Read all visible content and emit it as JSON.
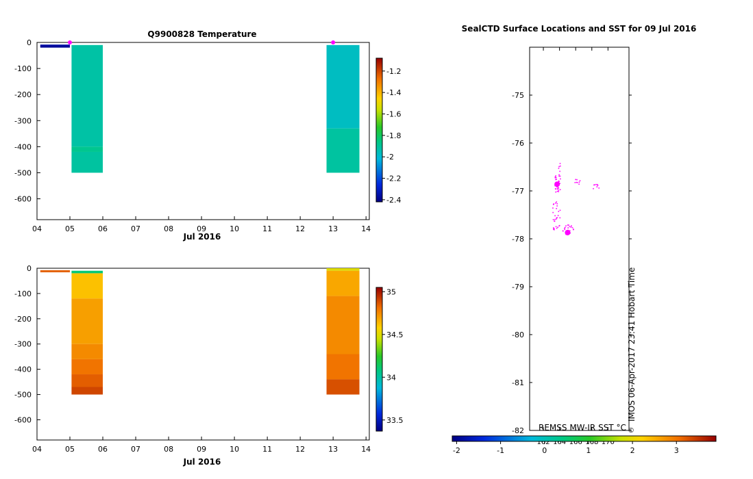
{
  "chart_data": [
    {
      "type": "heatmap",
      "title": "Q9900828  Temperature",
      "xlabel": "Jul 2016",
      "x_ticks": [
        "04",
        "05",
        "06",
        "07",
        "08",
        "09",
        "10",
        "11",
        "12",
        "13",
        "14"
      ],
      "xlim": [
        4,
        14.1
      ],
      "ylim": [
        -680,
        0
      ],
      "y_ticks": [
        0,
        -100,
        -200,
        -300,
        -400,
        -500,
        -600
      ],
      "colorbar": {
        "range": [
          -2.42,
          -1.08
        ],
        "ticks": [
          -1.2,
          -1.4,
          -1.6,
          -1.8,
          -2,
          -2.2,
          -2.4
        ]
      },
      "surface_track": [
        {
          "x0": 4.1,
          "x1": 5.0,
          "depth": -12,
          "value": -2.35
        },
        {
          "x0": 4.1,
          "x1": 5.0,
          "depth": -16,
          "value": -2.38
        }
      ],
      "profiles": [
        {
          "x0": 5.05,
          "x1": 6.0,
          "cells": [
            {
              "top": -10,
              "bottom": -400,
              "value": -1.92
            },
            {
              "top": -400,
              "bottom": -420,
              "value": -1.88
            },
            {
              "top": -420,
              "bottom": -500,
              "value": -1.91
            }
          ]
        },
        {
          "x0": 12.8,
          "x1": 13.8,
          "cells": [
            {
              "top": -10,
              "bottom": -330,
              "value": -1.97
            },
            {
              "top": -330,
              "bottom": -500,
              "value": -1.91
            }
          ]
        }
      ],
      "markers": [
        {
          "x": 5.0,
          "y": 0
        },
        {
          "x": 13.0,
          "y": 0
        }
      ]
    },
    {
      "type": "heatmap",
      "title": "",
      "xlabel": "Jul 2016",
      "x_ticks": [
        "04",
        "05",
        "06",
        "07",
        "08",
        "09",
        "10",
        "11",
        "12",
        "13",
        "14"
      ],
      "xlim": [
        4,
        14.1
      ],
      "ylim": [
        -680,
        0
      ],
      "y_ticks": [
        0,
        -100,
        -200,
        -300,
        -400,
        -500,
        -600
      ],
      "colorbar": {
        "range": [
          33.37,
          35.05
        ],
        "ticks": [
          35,
          34.5,
          34,
          33.5
        ]
      },
      "surface_track": [
        {
          "x0": 4.1,
          "x1": 5.0,
          "depth": -12,
          "value": 34.85
        }
      ],
      "profiles": [
        {
          "x0": 5.05,
          "x1": 6.0,
          "cells": [
            {
              "top": -10,
              "bottom": -20,
              "value": 34.1
            },
            {
              "top": -20,
              "bottom": -120,
              "value": 34.62
            },
            {
              "top": -120,
              "bottom": -300,
              "value": 34.7
            },
            {
              "top": -300,
              "bottom": -360,
              "value": 34.75
            },
            {
              "top": -360,
              "bottom": -420,
              "value": 34.8
            },
            {
              "top": -420,
              "bottom": -470,
              "value": 34.85
            },
            {
              "top": -470,
              "bottom": -500,
              "value": 34.9
            }
          ]
        },
        {
          "x0": 12.8,
          "x1": 13.8,
          "cells": [
            {
              "top": 0,
              "bottom": -10,
              "value": 34.5
            },
            {
              "top": -10,
              "bottom": -110,
              "value": 34.68
            },
            {
              "top": -110,
              "bottom": -340,
              "value": 34.75
            },
            {
              "top": -340,
              "bottom": -440,
              "value": 34.8
            },
            {
              "top": -440,
              "bottom": -500,
              "value": 34.88
            }
          ]
        }
      ]
    },
    {
      "type": "scatter",
      "title": "SealCTD Surface Locations and SST for 09 Jul 2016",
      "ylim": [
        -82,
        -74
      ],
      "y_ticks": [
        -75,
        -76,
        -77,
        -78,
        -79,
        -80,
        -81,
        -82
      ],
      "x_ticks": [
        162,
        164,
        166,
        168,
        170
      ],
      "xlim": [
        160.3,
        172.6
      ],
      "footer": "IMOS 06-Apr-2017 23:41 Hobart Time",
      "colorbar": {
        "label": "REMSS MW-IR SST °C",
        "range": [
          -2.1,
          3.9
        ],
        "ticks": [
          -2,
          -1,
          0,
          1,
          2,
          3
        ]
      },
      "clusters": [
        {
          "x": 163.7,
          "y": -76.85,
          "spread_x": 0.35,
          "spread_y": 0.18,
          "count": 30
        },
        {
          "x": 163.9,
          "y": -76.65,
          "spread_x": 0.15,
          "spread_y": 0.25,
          "count": 10
        },
        {
          "x": 166.3,
          "y": -76.8,
          "spread_x": 0.45,
          "spread_y": 0.05,
          "count": 8
        },
        {
          "x": 168.5,
          "y": -76.9,
          "spread_x": 0.4,
          "spread_y": 0.06,
          "count": 8
        },
        {
          "x": 163.6,
          "y": -77.5,
          "spread_x": 0.5,
          "spread_y": 0.3,
          "count": 30
        },
        {
          "x": 165.0,
          "y": -77.8,
          "spread_x": 0.7,
          "spread_y": 0.1,
          "count": 22
        }
      ],
      "large_markers": [
        {
          "x": 163.7,
          "y": -76.86
        },
        {
          "x": 165.0,
          "y": -77.87
        }
      ]
    }
  ]
}
